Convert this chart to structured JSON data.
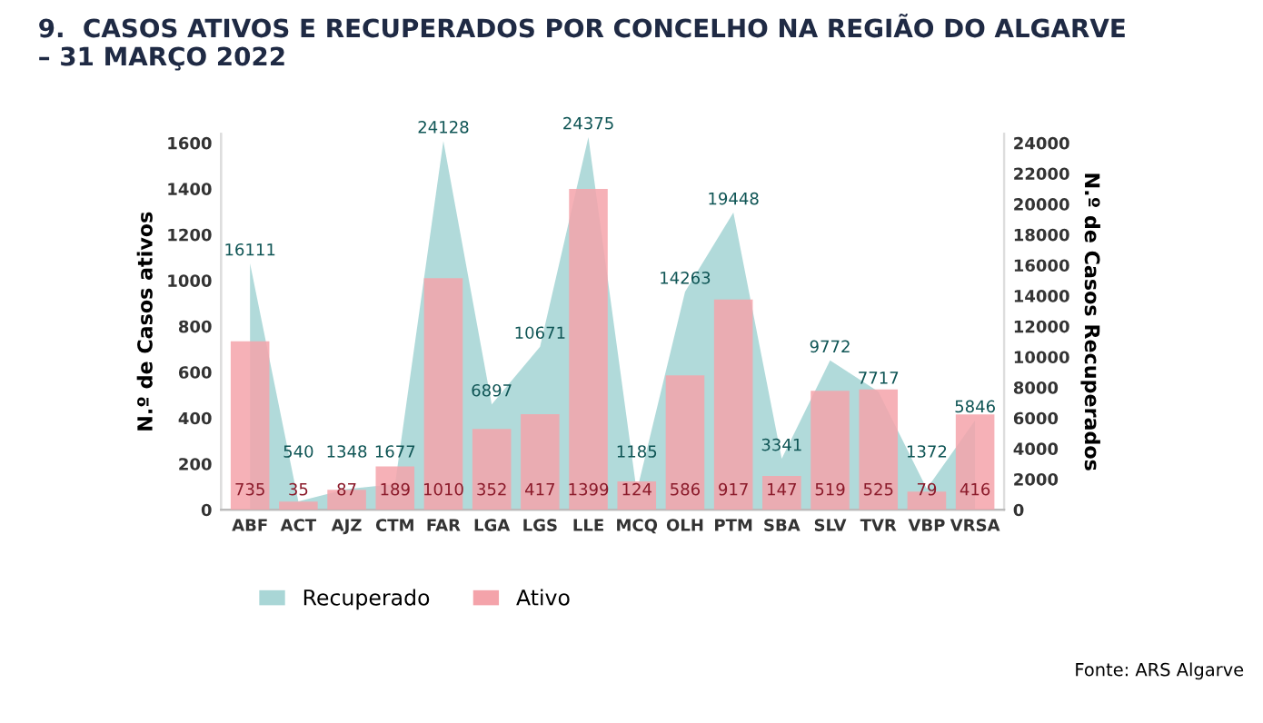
{
  "chart_data": {
    "type": "bar",
    "title": "9.  CASOS ATIVOS E RECUPERADOS POR CONCELHO NA REGIÃO DO ALGARVE\n– 31 MARÇO 2022",
    "ylabel": "N.º de Casos ativos",
    "y2label": "N.º de Casos Recuperados",
    "categories": [
      "ABF",
      "ACT",
      "AJZ",
      "CTM",
      "FAR",
      "LGA",
      "LGS",
      "LLE",
      "MCQ",
      "OLH",
      "PTM",
      "SBA",
      "SLV",
      "TVR",
      "VBP",
      "VRSA"
    ],
    "series": [
      {
        "name": "Recuperado",
        "type": "area",
        "axis": "y2",
        "color": "#a9d6d6",
        "values": [
          16111,
          540,
          1348,
          1677,
          24128,
          6897,
          10671,
          24375,
          1185,
          14263,
          19448,
          3341,
          9772,
          7717,
          1372,
          5846
        ]
      },
      {
        "name": "Ativo",
        "color": "#f4a3aa",
        "values": [
          735,
          35,
          87,
          189,
          1010,
          352,
          417,
          1399,
          124,
          586,
          917,
          147,
          519,
          525,
          79,
          416
        ]
      }
    ],
    "ylim": [
      0,
      1640
    ],
    "yticks": [
      0,
      200,
      400,
      600,
      800,
      1000,
      1200,
      1400,
      1600
    ],
    "y2lim": [
      0,
      24600
    ],
    "y2ticks": [
      0,
      2000,
      4000,
      6000,
      8000,
      10000,
      12000,
      14000,
      16000,
      18000,
      20000,
      22000,
      24000
    ],
    "data_labels": true,
    "grid": false,
    "legend": "bottom left",
    "annotations": [
      "Fonte: ARS Algarve"
    ]
  }
}
